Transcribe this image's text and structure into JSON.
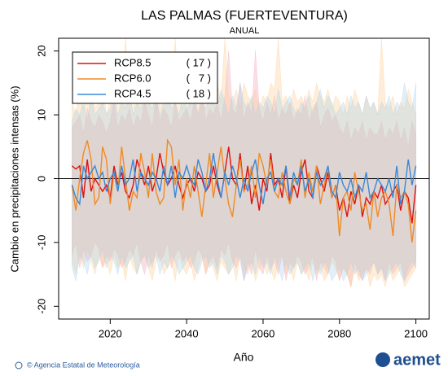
{
  "chart_data": {
    "type": "line",
    "title": "LAS PALMAS (FUERTEVENTURA)",
    "subtitle": "ANUAL",
    "ylabel": "Cambio en precipitaciones intensas (%)",
    "xlabel": "Año",
    "footer": "© Agencia Estatal de Meteorología",
    "logo": "aemet",
    "xlim": [
      2006.5,
      2103.5
    ],
    "ylim": [
      -22,
      22
    ],
    "xticks": [
      2020,
      2040,
      2060,
      2080,
      2100
    ],
    "yticks": [
      -20,
      -10,
      0,
      10,
      20
    ],
    "reference_line": 0,
    "legend": "top-left",
    "x": [
      2010,
      2011,
      2012,
      2013,
      2014,
      2015,
      2016,
      2017,
      2018,
      2019,
      2020,
      2021,
      2022,
      2023,
      2024,
      2025,
      2026,
      2027,
      2028,
      2029,
      2030,
      2031,
      2032,
      2033,
      2034,
      2035,
      2036,
      2037,
      2038,
      2039,
      2040,
      2041,
      2042,
      2043,
      2044,
      2045,
      2046,
      2047,
      2048,
      2049,
      2050,
      2051,
      2052,
      2053,
      2054,
      2055,
      2056,
      2057,
      2058,
      2059,
      2060,
      2061,
      2062,
      2063,
      2064,
      2065,
      2066,
      2067,
      2068,
      2069,
      2070,
      2071,
      2072,
      2073,
      2074,
      2075,
      2076,
      2077,
      2078,
      2079,
      2080,
      2081,
      2082,
      2083,
      2084,
      2085,
      2086,
      2087,
      2088,
      2089,
      2090,
      2091,
      2092,
      2093,
      2094,
      2095,
      2096,
      2097,
      2098,
      2099,
      2100
    ],
    "series": [
      {
        "name": "RCP8.5",
        "count": {
          "value": 17,
          "label": "( 17 )"
        },
        "color": "#dd1111",
        "band_color": "#f4a0b4",
        "values": [
          2,
          1.5,
          2,
          -3,
          3,
          -2,
          0,
          -1,
          -2,
          -1,
          -3,
          2,
          -1,
          1,
          -2,
          -3,
          -1,
          3,
          1,
          -1,
          2,
          -2,
          0,
          4,
          1,
          -1,
          0,
          2,
          -1,
          -3,
          -1,
          0,
          -2,
          1,
          0,
          -2,
          -1,
          2,
          -1,
          -3,
          1,
          5,
          0,
          -1,
          4,
          -2,
          2,
          -4,
          -1,
          -5,
          0,
          -2,
          4,
          -1,
          0,
          -3,
          2,
          -4,
          -1,
          -3,
          1,
          3,
          -2,
          -3,
          2,
          0,
          -2,
          1,
          -3,
          -1,
          -5,
          -3,
          -6,
          -2,
          -4,
          -1,
          -6,
          -3,
          -4,
          -2,
          -3,
          -1,
          -4,
          -3,
          -2,
          -1,
          -5,
          -2,
          -3,
          -7,
          -1
        ],
        "upper": [
          8,
          9,
          10,
          7,
          11,
          9,
          8,
          10,
          9,
          7,
          9,
          12,
          8,
          10,
          9,
          11,
          8,
          10,
          9,
          12,
          10,
          8,
          13,
          9,
          11,
          10,
          8,
          12,
          9,
          10,
          11,
          9,
          12,
          10,
          14,
          9,
          11,
          10,
          12,
          9,
          13,
          20,
          11,
          10,
          15,
          9,
          12,
          10,
          20,
          11,
          9,
          12,
          10,
          13,
          9,
          11,
          10,
          12,
          9,
          11,
          10,
          13,
          9,
          11,
          12,
          8,
          10,
          11,
          9,
          10,
          8,
          7,
          9,
          6,
          8,
          7,
          9,
          6,
          8,
          7,
          7,
          9,
          6,
          8,
          7,
          9,
          6,
          8,
          5,
          9,
          7
        ],
        "lower": [
          -12,
          -10,
          -14,
          -11,
          -13,
          -12,
          -10,
          -11,
          -14,
          -12,
          -13,
          -11,
          -12,
          -14,
          -13,
          -11,
          -12,
          -10,
          -13,
          -15,
          -12,
          -14,
          -11,
          -13,
          -12,
          -10,
          -14,
          -12,
          -11,
          -13,
          -12,
          -14,
          -13,
          -11,
          -12,
          -15,
          -13,
          -12,
          -14,
          -11,
          -12,
          -10,
          -13,
          -14,
          -12,
          -16,
          -13,
          -15,
          -11,
          -14,
          -15,
          -12,
          -14,
          -13,
          -15,
          -12,
          -16,
          -13,
          -14,
          -12,
          -13,
          -15,
          -14,
          -12,
          -16,
          -13,
          -14,
          -15,
          -12,
          -13,
          -16,
          -14,
          -15,
          -17,
          -13,
          -15,
          -16,
          -14,
          -15,
          -13,
          -15,
          -14,
          -16,
          -13,
          -15,
          -14,
          -13,
          -16,
          -15,
          -14,
          -13
        ]
      },
      {
        "name": "RCP6.0",
        "count": {
          "value": 7,
          "label": "(   7 )"
        },
        "color": "#f08a24",
        "band_color": "#fbcc90",
        "values": [
          -1,
          -5,
          0,
          4,
          6,
          3,
          -4,
          -3,
          5,
          3,
          -4,
          1,
          -2,
          5,
          0,
          -5,
          -2,
          -3,
          4,
          1,
          -3,
          4,
          -2,
          -4,
          -3,
          6,
          5,
          -1,
          3,
          -5,
          0,
          -3,
          2,
          -2,
          -6,
          -1,
          4,
          -3,
          1,
          5,
          0,
          -4,
          -6,
          -1,
          3,
          -2,
          -1,
          2,
          -3,
          4,
          2,
          -1,
          3,
          -2,
          -3,
          1,
          -2,
          -4,
          0,
          -1,
          3,
          -3,
          1,
          -2,
          2,
          -4,
          -1,
          2,
          -3,
          -1,
          -9,
          -3,
          -2,
          -5,
          1,
          -2,
          -5,
          -4,
          -8,
          -2,
          -6,
          -3,
          -2,
          -4,
          -9,
          -1,
          -3,
          -2,
          -4,
          -10,
          -5
        ],
        "upper": [
          12,
          10,
          14,
          11,
          13,
          15,
          11,
          12,
          16,
          10,
          13,
          11,
          14,
          12,
          22,
          13,
          11,
          15,
          12,
          14,
          13,
          12,
          16,
          11,
          15,
          14,
          12,
          22,
          13,
          11,
          14,
          12,
          15,
          13,
          11,
          14,
          12,
          13,
          15,
          12,
          22,
          13,
          12,
          14,
          11,
          15,
          13,
          12,
          14,
          11,
          13,
          12,
          15,
          14,
          22,
          12,
          13,
          11,
          14,
          12,
          13,
          11,
          14,
          12,
          15,
          13,
          12,
          14,
          11,
          13,
          12,
          10,
          13,
          11,
          14,
          12,
          10,
          13,
          11,
          12,
          10,
          22,
          12,
          11,
          13,
          10,
          12,
          11,
          14,
          12,
          10
        ],
        "lower": [
          -13,
          -15,
          -12,
          -14,
          -11,
          -13,
          -15,
          -12,
          -14,
          -13,
          -15,
          -12,
          -14,
          -13,
          -16,
          -12,
          -14,
          -15,
          -13,
          -12,
          -14,
          -16,
          -13,
          -12,
          -15,
          -14,
          -13,
          -16,
          -12,
          -14,
          -15,
          -13,
          -16,
          -14,
          -12,
          -15,
          -13,
          -14,
          -16,
          -13,
          -14,
          -15,
          -13,
          -16,
          -12,
          -14,
          -15,
          -13,
          -16,
          -14,
          -13,
          -15,
          -14,
          -16,
          -13,
          -12,
          -15,
          -14,
          -16,
          -13,
          -15,
          -14,
          -16,
          -13,
          -15,
          -14,
          -16,
          -15,
          -13,
          -14,
          -16,
          -14,
          -15,
          -17,
          -14,
          -16,
          -15,
          -14,
          -17,
          -15,
          -16,
          -15,
          -17,
          -14,
          -16,
          -15,
          -14,
          -17,
          -16,
          -15,
          -14
        ]
      },
      {
        "name": "RCP4.5",
        "count": {
          "value": 18,
          "label": "( 18 )"
        },
        "color": "#3a88d8",
        "band_color": "#a8d0ea",
        "values": [
          -1,
          -3,
          -4,
          2,
          0,
          1,
          2,
          0,
          1,
          -2,
          0,
          1,
          -2,
          2,
          -1,
          0,
          3,
          -2,
          1,
          0,
          -1,
          1,
          0,
          -2,
          2,
          -1,
          2,
          -3,
          1,
          0,
          2,
          0,
          -1,
          3,
          1,
          -2,
          0,
          4,
          0,
          -3,
          1,
          -1,
          2,
          0,
          -3,
          0,
          -2,
          1,
          3,
          -1,
          -4,
          0,
          1,
          -2,
          0,
          -1,
          2,
          -3,
          1,
          -1,
          2,
          -2,
          0,
          -3,
          1,
          -1,
          0,
          2,
          -2,
          -3,
          1,
          -1,
          -2,
          0,
          -3,
          -1,
          -2,
          1,
          -3,
          -2,
          0,
          -1,
          -2,
          0,
          -3,
          2,
          -4,
          -2,
          3,
          -1,
          2
        ],
        "upper": [
          9,
          11,
          10,
          12,
          9,
          13,
          10,
          11,
          12,
          10,
          11,
          13,
          10,
          12,
          11,
          14,
          10,
          12,
          11,
          13,
          12,
          11,
          13,
          10,
          12,
          14,
          11,
          12,
          10,
          13,
          11,
          12,
          14,
          10,
          12,
          11,
          13,
          12,
          11,
          14,
          12,
          10,
          13,
          11,
          15,
          12,
          11,
          13,
          10,
          12,
          11,
          13,
          12,
          10,
          14,
          11,
          12,
          13,
          11,
          10,
          12,
          11,
          13,
          10,
          12,
          14,
          11,
          13,
          12,
          10,
          11,
          12,
          10,
          13,
          11,
          12,
          10,
          13,
          11,
          12,
          10,
          12,
          11,
          13,
          10,
          12,
          11,
          15,
          12,
          11,
          15
        ],
        "lower": [
          -14,
          -16,
          -12,
          -13,
          -15,
          -12,
          -14,
          -13,
          -11,
          -14,
          -12,
          -13,
          -15,
          -12,
          -14,
          -13,
          -12,
          -15,
          -13,
          -12,
          -14,
          -13,
          -12,
          -15,
          -13,
          -14,
          -12,
          -13,
          -15,
          -14,
          -13,
          -12,
          -14,
          -15,
          -13,
          -12,
          -14,
          -13,
          -15,
          -12,
          -13,
          -15,
          -14,
          -12,
          -13,
          -16,
          -14,
          -13,
          -15,
          -12,
          -14,
          -13,
          -15,
          -12,
          -14,
          -16,
          -13,
          -15,
          -14,
          -13,
          -15,
          -14,
          -13,
          -16,
          -14,
          -15,
          -13,
          -14,
          -16,
          -15,
          -14,
          -16,
          -15,
          -13,
          -15,
          -14,
          -16,
          -15,
          -14,
          -13,
          -15,
          -14,
          -16,
          -15,
          -14,
          -13,
          -15,
          -16,
          -14,
          -13,
          -14
        ]
      }
    ]
  }
}
